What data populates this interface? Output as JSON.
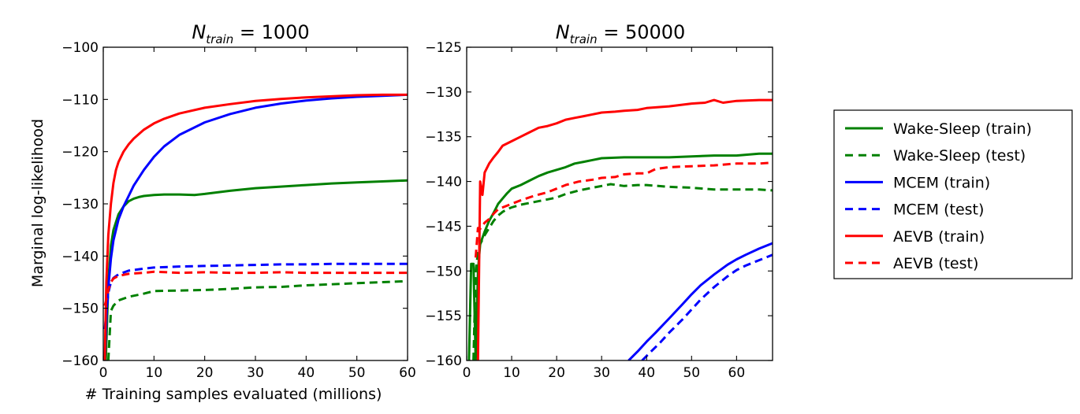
{
  "chart_data": {
    "type": "line",
    "xlabel": "# Training samples evaluated (millions)",
    "ylabel": "Marginal log-likelihood",
    "legend": {
      "placement": "right",
      "entries": [
        {
          "label": "Wake-Sleep (train)",
          "color": "#008000",
          "style": "solid"
        },
        {
          "label": "Wake-Sleep (test)",
          "color": "#008000",
          "style": "dashed"
        },
        {
          "label": "MCEM (train)",
          "color": "#0000ff",
          "style": "solid"
        },
        {
          "label": "MCEM (test)",
          "color": "#0000ff",
          "style": "dashed"
        },
        {
          "label": "AEVB (train)",
          "color": "#ff0000",
          "style": "solid"
        },
        {
          "label": "AEVB (test)",
          "color": "#ff0000",
          "style": "dashed"
        }
      ]
    },
    "panels": [
      {
        "title_base": "N",
        "title_sub": "train",
        "title_value": " = 1000",
        "xlim": [
          0,
          60
        ],
        "ylim": [
          -160,
          -100
        ],
        "xticks": [
          0,
          10,
          20,
          30,
          40,
          50,
          60
        ],
        "yticks": [
          -160,
          -150,
          -140,
          -130,
          -120,
          -110,
          -100
        ],
        "series": [
          {
            "name": "Wake-Sleep (train)",
            "color": "#008000",
            "style": "solid",
            "x": [
              0.5,
              1,
              1.5,
              2,
              3,
              4,
              5,
              6,
              7,
              8,
              10,
              12,
              15,
              18,
              20,
              25,
              30,
              35,
              40,
              45,
              50,
              55,
              60
            ],
            "y": [
              -160,
              -145,
              -138,
              -135,
              -132,
              -130.5,
              -129.5,
              -129,
              -128.7,
              -128.5,
              -128.3,
              -128.2,
              -128.2,
              -128.3,
              -128.1,
              -127.5,
              -127,
              -126.7,
              -126.4,
              -126.1,
              -125.9,
              -125.7,
              -125.5
            ]
          },
          {
            "name": "Wake-Sleep (test)",
            "color": "#008000",
            "style": "dashed",
            "x": [
              1,
              1.5,
              2,
              3,
              5,
              8,
              10,
              15,
              20,
              25,
              30,
              35,
              40,
              45,
              50,
              55,
              60
            ],
            "y": [
              -160,
              -150.5,
              -149.5,
              -148.5,
              -147.8,
              -147.2,
              -146.7,
              -146.6,
              -146.5,
              -146.3,
              -146,
              -145.9,
              -145.6,
              -145.4,
              -145.2,
              -145,
              -144.8
            ]
          },
          {
            "name": "MCEM (train)",
            "color": "#0000ff",
            "style": "solid",
            "x": [
              0.3,
              0.7,
              1,
              1.5,
              2,
              3,
              4,
              5,
              6,
              8,
              10,
              12,
              15,
              20,
              25,
              30,
              35,
              40,
              45,
              50,
              55,
              60
            ],
            "y": [
              -160,
              -150,
              -146,
              -140.5,
              -137,
              -133,
              -130.5,
              -128.5,
              -126.5,
              -123.5,
              -121,
              -119,
              -116.8,
              -114.4,
              -112.8,
              -111.6,
              -110.8,
              -110.2,
              -109.8,
              -109.5,
              -109.3,
              -109.1
            ]
          },
          {
            "name": "MCEM (test)",
            "color": "#0000ff",
            "style": "dashed",
            "x": [
              0.3,
              0.7,
              1,
              1.5,
              2,
              3,
              5,
              8,
              10,
              15,
              20,
              25,
              30,
              35,
              40,
              45,
              50,
              55,
              60
            ],
            "y": [
              -154,
              -150,
              -147,
              -145,
              -144.2,
              -143.5,
              -142.8,
              -142.4,
              -142.2,
              -142,
              -141.9,
              -141.8,
              -141.7,
              -141.6,
              -141.6,
              -141.5,
              -141.5,
              -141.5,
              -141.5
            ]
          },
          {
            "name": "AEVB (train)",
            "color": "#ff0000",
            "style": "solid",
            "x": [
              0.3,
              0.6,
              1,
              1.5,
              2,
              2.5,
              3,
              4,
              5,
              6,
              8,
              10,
              12,
              15,
              20,
              25,
              30,
              35,
              40,
              45,
              50,
              55,
              60
            ],
            "y": [
              -160,
              -145,
              -136,
              -130,
              -126,
              -123.5,
              -122,
              -120,
              -118.6,
              -117.5,
              -115.8,
              -114.6,
              -113.7,
              -112.7,
              -111.6,
              -110.9,
              -110.3,
              -109.9,
              -109.6,
              -109.4,
              -109.2,
              -109.1,
              -109.1
            ]
          },
          {
            "name": "AEVB (test)",
            "color": "#ff0000",
            "style": "dashed",
            "x": [
              0.3,
              0.7,
              1,
              1.5,
              2,
              3,
              5,
              8,
              10,
              15,
              20,
              25,
              30,
              35,
              40,
              45,
              50,
              55,
              60
            ],
            "y": [
              -149.5,
              -148,
              -146.5,
              -145,
              -144.3,
              -143.8,
              -143.4,
              -143.2,
              -143,
              -143.2,
              -143.1,
              -143.2,
              -143.2,
              -143.1,
              -143.2,
              -143.2,
              -143.2,
              -143.2,
              -143.2
            ]
          }
        ]
      },
      {
        "title_base": "N",
        "title_sub": "train",
        "title_value": " = 50000",
        "xlim": [
          0,
          68
        ],
        "ylim": [
          -160,
          -125
        ],
        "xticks": [
          0,
          10,
          20,
          30,
          40,
          50,
          60
        ],
        "yticks": [
          -160,
          -155,
          -150,
          -145,
          -140,
          -135,
          -130,
          -125
        ],
        "series": [
          {
            "name": "Wake-Sleep (train)",
            "color": "#008000",
            "style": "solid",
            "x": [
              0.5,
              1,
              1.5,
              2,
              2.5,
              3,
              4,
              5,
              6,
              7,
              8,
              9,
              10,
              12,
              14,
              16,
              18,
              20,
              22,
              24,
              26,
              28,
              30,
              35,
              40,
              45,
              50,
              55,
              60,
              65,
              68
            ],
            "y": [
              -160,
              -149.2,
              -149.2,
              -160,
              -150,
              -147,
              -145.6,
              -144.4,
              -143.5,
              -142.5,
              -141.9,
              -141.3,
              -140.8,
              -140.4,
              -139.9,
              -139.4,
              -139,
              -138.7,
              -138.4,
              -138,
              -137.8,
              -137.6,
              -137.4,
              -137.3,
              -137.3,
              -137.3,
              -137.2,
              -137.1,
              -137.1,
              -136.9,
              -136.9
            ]
          },
          {
            "name": "Wake-Sleep (test)",
            "color": "#008000",
            "style": "dashed",
            "x": [
              1.5,
              2,
              2.5,
              3,
              4,
              5,
              6,
              7,
              8,
              9,
              10,
              12,
              15,
              18,
              20,
              22,
              25,
              28,
              30,
              32,
              35,
              38,
              40,
              45,
              50,
              55,
              60,
              65,
              68
            ],
            "y": [
              -160,
              -150,
              -148,
              -147,
              -146,
              -145.2,
              -144.4,
              -143.8,
              -143.4,
              -143.1,
              -142.9,
              -142.6,
              -142.3,
              -142,
              -141.8,
              -141.4,
              -141,
              -140.7,
              -140.5,
              -140.3,
              -140.5,
              -140.4,
              -140.4,
              -140.6,
              -140.7,
              -140.9,
              -140.9,
              -140.9,
              -141
            ]
          },
          {
            "name": "MCEM (train)",
            "color": "#0000ff",
            "style": "solid",
            "x": [
              36,
              38,
              40,
              42,
              45,
              48,
              50,
              52,
              55,
              58,
              60,
              62,
              65,
              68
            ],
            "y": [
              -160,
              -159,
              -157.9,
              -156.9,
              -155.3,
              -153.7,
              -152.6,
              -151.6,
              -150.4,
              -149.3,
              -148.7,
              -148.2,
              -147.5,
              -146.9
            ]
          },
          {
            "name": "MCEM (test)",
            "color": "#0000ff",
            "style": "dashed",
            "x": [
              39,
              41,
              43,
              45,
              48,
              50,
              52,
              55,
              58,
              60,
              62,
              65,
              68
            ],
            "y": [
              -160,
              -159,
              -158,
              -156.9,
              -155.4,
              -154.3,
              -153.2,
              -151.8,
              -150.6,
              -149.9,
              -149.4,
              -148.8,
              -148.2
            ]
          },
          {
            "name": "AEVB (train)",
            "color": "#ff0000",
            "style": "solid",
            "x": [
              2.5,
              3,
              3.5,
              4,
              5,
              6,
              7,
              8,
              10,
              12,
              14,
              16,
              18,
              20,
              22,
              24,
              26,
              28,
              30,
              33,
              35,
              38,
              40,
              45,
              50,
              53,
              55,
              57,
              60,
              65,
              68
            ],
            "y": [
              -160,
              -140,
              -141.5,
              -139,
              -138,
              -137.3,
              -136.7,
              -136,
              -135.5,
              -135,
              -134.5,
              -134,
              -133.8,
              -133.5,
              -133.1,
              -132.9,
              -132.7,
              -132.5,
              -132.3,
              -132.2,
              -132.1,
              -132,
              -131.8,
              -131.6,
              -131.3,
              -131.2,
              -130.9,
              -131.2,
              -131,
              -130.9,
              -130.9
            ]
          },
          {
            "name": "AEVB (test)",
            "color": "#ff0000",
            "style": "dashed",
            "x": [
              2,
              2.5,
              3,
              3.5,
              4,
              5,
              6,
              7,
              8,
              10,
              12,
              15,
              18,
              20,
              22,
              25,
              28,
              30,
              33,
              35,
              38,
              40,
              42,
              45,
              50,
              55,
              60,
              65,
              68
            ],
            "y": [
              -148.5,
              -145.2,
              -145.3,
              -145,
              -144.6,
              -144.2,
              -143.6,
              -143.1,
              -142.9,
              -142.5,
              -142.1,
              -141.6,
              -141.2,
              -140.8,
              -140.4,
              -140,
              -139.8,
              -139.6,
              -139.5,
              -139.2,
              -139.1,
              -139.1,
              -138.6,
              -138.4,
              -138.3,
              -138.2,
              -138,
              -138,
              -137.9
            ]
          }
        ]
      }
    ]
  }
}
